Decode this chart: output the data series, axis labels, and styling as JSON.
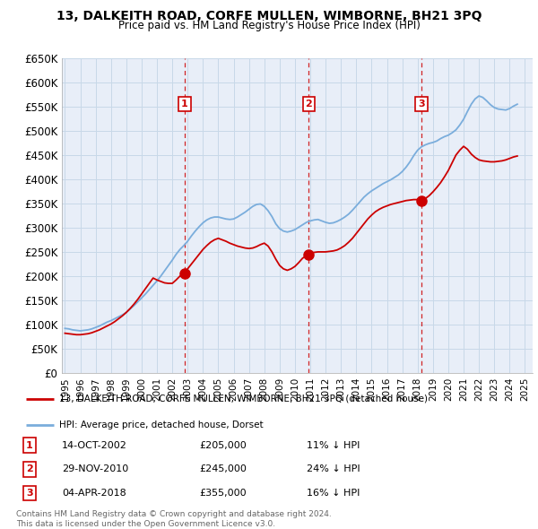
{
  "title": "13, DALKEITH ROAD, CORFE MULLEN, WIMBORNE, BH21 3PQ",
  "subtitle": "Price paid vs. HM Land Registry's House Price Index (HPI)",
  "ylim": [
    0,
    650000
  ],
  "yticks": [
    0,
    50000,
    100000,
    150000,
    200000,
    250000,
    300000,
    350000,
    400000,
    450000,
    500000,
    550000,
    600000,
    650000
  ],
  "ytick_labels": [
    "£0",
    "£50K",
    "£100K",
    "£150K",
    "£200K",
    "£250K",
    "£300K",
    "£350K",
    "£400K",
    "£450K",
    "£500K",
    "£550K",
    "£600K",
    "£650K"
  ],
  "xlim_start": 1994.8,
  "xlim_end": 2025.5,
  "sale_dates": [
    2002.79,
    2010.91,
    2018.26
  ],
  "sale_prices": [
    205000,
    245000,
    355000
  ],
  "sale_labels": [
    "1",
    "2",
    "3"
  ],
  "sale_date_strs": [
    "14-OCT-2002",
    "29-NOV-2010",
    "04-APR-2018"
  ],
  "sale_price_strs": [
    "£205,000",
    "£245,000",
    "£355,000"
  ],
  "sale_pct_strs": [
    "11% ↓ HPI",
    "24% ↓ HPI",
    "16% ↓ HPI"
  ],
  "red_line_color": "#cc0000",
  "blue_line_color": "#7aaddc",
  "vline_color": "#cc0000",
  "grid_color": "#c8d8e8",
  "bg_color": "#e8eef8",
  "hpi_years": [
    1995.0,
    1995.25,
    1995.5,
    1995.75,
    1996.0,
    1996.25,
    1996.5,
    1996.75,
    1997.0,
    1997.25,
    1997.5,
    1997.75,
    1998.0,
    1998.25,
    1998.5,
    1998.75,
    1999.0,
    1999.25,
    1999.5,
    1999.75,
    2000.0,
    2000.25,
    2000.5,
    2000.75,
    2001.0,
    2001.25,
    2001.5,
    2001.75,
    2002.0,
    2002.25,
    2002.5,
    2002.75,
    2003.0,
    2003.25,
    2003.5,
    2003.75,
    2004.0,
    2004.25,
    2004.5,
    2004.75,
    2005.0,
    2005.25,
    2005.5,
    2005.75,
    2006.0,
    2006.25,
    2006.5,
    2006.75,
    2007.0,
    2007.25,
    2007.5,
    2007.75,
    2008.0,
    2008.25,
    2008.5,
    2008.75,
    2009.0,
    2009.25,
    2009.5,
    2009.75,
    2010.0,
    2010.25,
    2010.5,
    2010.75,
    2011.0,
    2011.25,
    2011.5,
    2011.75,
    2012.0,
    2012.25,
    2012.5,
    2012.75,
    2013.0,
    2013.25,
    2013.5,
    2013.75,
    2014.0,
    2014.25,
    2014.5,
    2014.75,
    2015.0,
    2015.25,
    2015.5,
    2015.75,
    2016.0,
    2016.25,
    2016.5,
    2016.75,
    2017.0,
    2017.25,
    2017.5,
    2017.75,
    2018.0,
    2018.25,
    2018.5,
    2018.75,
    2019.0,
    2019.25,
    2019.5,
    2019.75,
    2020.0,
    2020.25,
    2020.5,
    2020.75,
    2021.0,
    2021.25,
    2021.5,
    2021.75,
    2022.0,
    2022.25,
    2022.5,
    2022.75,
    2023.0,
    2023.25,
    2023.5,
    2023.75,
    2024.0,
    2024.25,
    2024.5
  ],
  "hpi_values": [
    92000,
    91000,
    89000,
    88000,
    87000,
    88000,
    89000,
    91000,
    94000,
    97000,
    101000,
    105000,
    108000,
    112000,
    116000,
    120000,
    125000,
    132000,
    139000,
    147000,
    155000,
    163000,
    172000,
    181000,
    190000,
    200000,
    211000,
    222000,
    233000,
    245000,
    255000,
    263000,
    272000,
    283000,
    293000,
    302000,
    310000,
    316000,
    320000,
    322000,
    322000,
    320000,
    318000,
    317000,
    318000,
    322000,
    327000,
    332000,
    338000,
    344000,
    348000,
    349000,
    344000,
    335000,
    323000,
    308000,
    298000,
    293000,
    291000,
    293000,
    296000,
    301000,
    306000,
    311000,
    314000,
    316000,
    317000,
    314000,
    311000,
    309000,
    310000,
    313000,
    317000,
    322000,
    328000,
    336000,
    345000,
    354000,
    363000,
    370000,
    376000,
    381000,
    386000,
    391000,
    395000,
    399000,
    404000,
    409000,
    416000,
    425000,
    436000,
    449000,
    460000,
    467000,
    471000,
    474000,
    476000,
    479000,
    484000,
    488000,
    491000,
    496000,
    502000,
    512000,
    524000,
    540000,
    555000,
    566000,
    572000,
    569000,
    562000,
    554000,
    548000,
    545000,
    544000,
    543000,
    546000,
    551000,
    555000
  ],
  "red_years": [
    1995.0,
    1995.25,
    1995.5,
    1995.75,
    1996.0,
    1996.25,
    1996.5,
    1996.75,
    1997.0,
    1997.25,
    1997.5,
    1997.75,
    1998.0,
    1998.25,
    1998.5,
    1998.75,
    1999.0,
    1999.25,
    1999.5,
    1999.75,
    2000.0,
    2000.25,
    2000.5,
    2000.75,
    2001.0,
    2001.25,
    2001.5,
    2001.75,
    2002.0,
    2002.25,
    2002.5,
    2002.79,
    2002.79,
    2003.0,
    2003.25,
    2003.5,
    2003.75,
    2004.0,
    2004.25,
    2004.5,
    2004.75,
    2005.0,
    2005.25,
    2005.5,
    2005.75,
    2006.0,
    2006.25,
    2006.5,
    2006.75,
    2007.0,
    2007.25,
    2007.5,
    2007.75,
    2008.0,
    2008.25,
    2008.5,
    2008.75,
    2009.0,
    2009.25,
    2009.5,
    2009.75,
    2010.0,
    2010.25,
    2010.5,
    2010.91,
    2010.91,
    2011.0,
    2011.25,
    2011.5,
    2011.75,
    2012.0,
    2012.25,
    2012.5,
    2012.75,
    2013.0,
    2013.25,
    2013.5,
    2013.75,
    2014.0,
    2014.25,
    2014.5,
    2014.75,
    2015.0,
    2015.25,
    2015.5,
    2015.75,
    2016.0,
    2016.25,
    2016.5,
    2016.75,
    2017.0,
    2017.25,
    2017.5,
    2017.75,
    2018.0,
    2018.25,
    2018.26,
    2018.26,
    2018.5,
    2018.75,
    2019.0,
    2019.25,
    2019.5,
    2019.75,
    2020.0,
    2020.25,
    2020.5,
    2020.75,
    2021.0,
    2021.25,
    2021.5,
    2021.75,
    2022.0,
    2022.25,
    2022.5,
    2022.75,
    2023.0,
    2023.25,
    2023.5,
    2023.75,
    2024.0,
    2024.25,
    2024.5
  ],
  "red_values": [
    82000,
    81000,
    80000,
    79000,
    79000,
    80000,
    81000,
    83000,
    86000,
    89000,
    93000,
    97000,
    101000,
    106000,
    112000,
    118000,
    125000,
    133000,
    142000,
    152000,
    163000,
    174000,
    185000,
    196000,
    192000,
    189000,
    186000,
    185000,
    185000,
    192000,
    200000,
    205000,
    205000,
    215000,
    225000,
    235000,
    245000,
    255000,
    263000,
    270000,
    275000,
    278000,
    275000,
    272000,
    268000,
    265000,
    262000,
    260000,
    258000,
    257000,
    258000,
    261000,
    265000,
    268000,
    262000,
    250000,
    235000,
    222000,
    215000,
    212000,
    215000,
    220000,
    228000,
    237000,
    245000,
    245000,
    247000,
    249000,
    250000,
    250000,
    250000,
    251000,
    252000,
    254000,
    258000,
    263000,
    270000,
    278000,
    288000,
    298000,
    308000,
    318000,
    326000,
    333000,
    338000,
    342000,
    345000,
    348000,
    350000,
    352000,
    354000,
    356000,
    357000,
    358000,
    358000,
    358000,
    355000,
    355000,
    360000,
    366000,
    374000,
    383000,
    393000,
    405000,
    418000,
    434000,
    450000,
    460000,
    468000,
    462000,
    452000,
    445000,
    440000,
    438000,
    437000,
    436000,
    436000,
    437000,
    438000,
    440000,
    443000,
    446000,
    448000
  ],
  "footnote": "Contains HM Land Registry data © Crown copyright and database right 2024.\nThis data is licensed under the Open Government Licence v3.0.",
  "legend_red_label": "13, DALKEITH ROAD, CORFE MULLEN, WIMBORNE, BH21 3PQ (detached house)",
  "legend_blue_label": "HPI: Average price, detached house, Dorset"
}
